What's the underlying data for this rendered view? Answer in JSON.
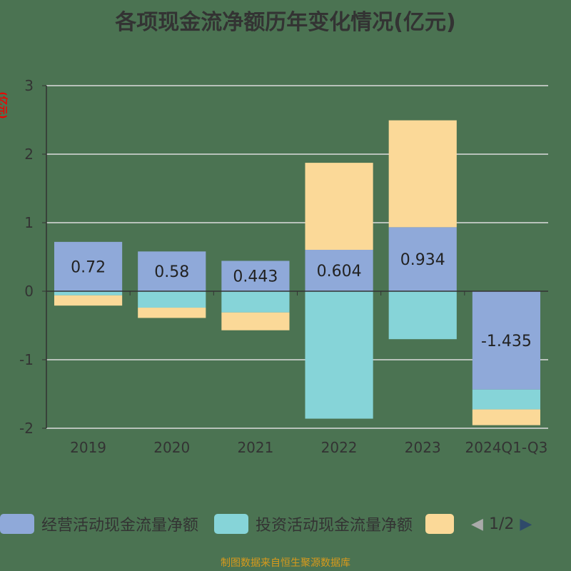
{
  "chart_data": {
    "type": "bar",
    "stacked": true,
    "title": "各项现金流净额历年变化情况(亿元)",
    "ylabel": "(亿元)",
    "categories": [
      "2019",
      "2020",
      "2021",
      "2022",
      "2023",
      "2024Q1-Q3"
    ],
    "ylim": [
      -2,
      3
    ],
    "yticks": [
      -2,
      -1,
      0,
      1,
      2,
      3
    ],
    "grid": true,
    "series": [
      {
        "name": "经营活动现金流量净额",
        "color": "#8fa9d9",
        "values": [
          0.72,
          0.58,
          0.443,
          0.604,
          0.934,
          -1.435
        ],
        "labels": [
          "0.72",
          "0.58",
          "0.443",
          "0.604",
          "0.934",
          "-1.435"
        ]
      },
      {
        "name": "投资活动现金流量净额",
        "color": "#86d4d8",
        "values": [
          -0.06,
          -0.24,
          -0.31,
          -1.86,
          -0.7,
          -0.29
        ]
      },
      {
        "name": "",
        "color": "#fbd998",
        "values": [
          -0.15,
          -0.15,
          -0.26,
          1.27,
          1.56,
          -0.23
        ]
      }
    ],
    "legend_position": "bottom",
    "legend_page": "1/2"
  },
  "footer": "制图数据来自恒生聚源数据库"
}
